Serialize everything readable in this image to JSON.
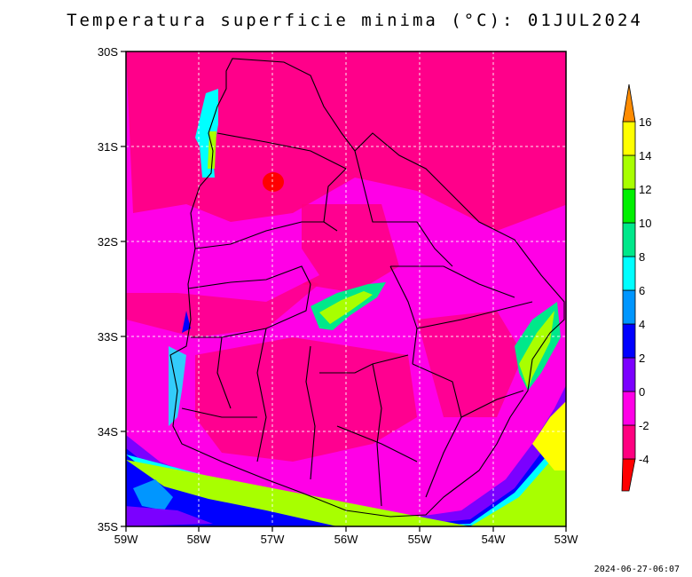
{
  "title": "Temperatura superficie minima (°C): 01JUL2024",
  "timestamp": "2024-06-27-06:07",
  "axes": {
    "lat_ticks": [
      "30S",
      "31S",
      "32S",
      "33S",
      "34S",
      "35S"
    ],
    "lon_ticks": [
      "59W",
      "58W",
      "57W",
      "56W",
      "55W",
      "54W",
      "53W"
    ]
  },
  "colorbar": {
    "labels": [
      "-4",
      "-2",
      "0",
      "2",
      "4",
      "6",
      "8",
      "10",
      "12",
      "14",
      "16"
    ],
    "colors": [
      "#ff0000",
      "#ff0080",
      "#ff00e6",
      "#7b00ff",
      "#0000ff",
      "#0096ff",
      "#00ffff",
      "#00e88a",
      "#00f000",
      "#a8ff00",
      "#ffff00",
      "#ff8c00"
    ]
  },
  "colors": {
    "bg_pink": "#ff00e6",
    "dark_pink": "#ff0080",
    "sea_green": "#a8ff00",
    "grid": "#ffffff"
  }
}
